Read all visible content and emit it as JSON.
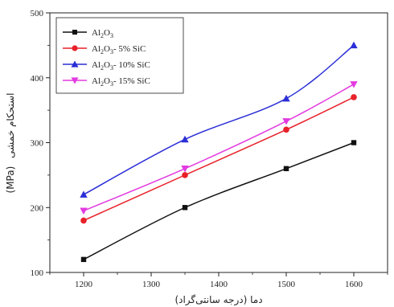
{
  "chart_data": {
    "type": "line",
    "title": "",
    "xlabel": "دما (درجه سانتی‌گراد)",
    "ylabel_fa": "استحکام خمشی",
    "ylabel_unit": "(MPa)",
    "x": [
      1200,
      1350,
      1500,
      1600
    ],
    "xlim": [
      1150,
      1650
    ],
    "ylim": [
      100,
      500
    ],
    "xticks": [
      "1200",
      "1300",
      "1400",
      "1500",
      "1600"
    ],
    "yticks": [
      "100",
      "200",
      "300",
      "400",
      "500"
    ],
    "grid": false,
    "legend_position": "top-left",
    "series": [
      {
        "name_main": "Al",
        "name_sub1": "2",
        "name_mid": "O",
        "name_sub2": "3",
        "name_tail": "",
        "color": "#111111",
        "marker": "square",
        "values": [
          120,
          200,
          260,
          300
        ]
      },
      {
        "name_main": "Al",
        "name_sub1": "2",
        "name_mid": "O",
        "name_sub2": "3",
        "name_tail": "- 5% SiC",
        "color": "#e8212a",
        "marker": "circle",
        "values": [
          180,
          250,
          320,
          370
        ]
      },
      {
        "name_main": "Al",
        "name_sub1": "2",
        "name_mid": "O",
        "name_sub2": "3",
        "name_tail": "- 10% SiC",
        "color": "#2b2fd6",
        "marker": "triangle-up",
        "values": [
          220,
          305,
          368,
          450
        ]
      },
      {
        "name_main": "Al",
        "name_sub1": "2",
        "name_mid": "O",
        "name_sub2": "3",
        "name_tail": "- 15% SiC",
        "color": "#e23ae0",
        "marker": "triangle-down",
        "values": [
          195,
          260,
          333,
          390
        ]
      }
    ]
  }
}
